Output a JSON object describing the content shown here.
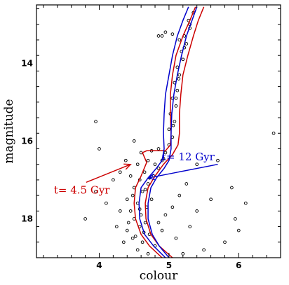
{
  "chart_data": {
    "type": "scatter",
    "title": "",
    "xlabel": "colour",
    "ylabel": "magnitude",
    "xlim": [
      3.1,
      6.6
    ],
    "ylim": [
      19.0,
      12.5
    ],
    "y_inverted": true,
    "xticks": [
      4,
      5,
      6
    ],
    "yticks": [
      14,
      16,
      18
    ],
    "xtick_labels": [
      "4",
      "5",
      "6"
    ],
    "ytick_labels": [
      "14",
      "16",
      "18"
    ],
    "grid": false,
    "legend": "none",
    "colors": {
      "points": "#000000",
      "isochrone_4_5": "#cc0000",
      "isochrone_12": "#0000cc"
    },
    "annotations": [
      {
        "text": "t= 4.5 Gyr",
        "color": "#cc0000",
        "x": 3.35,
        "y": 17.35,
        "arrow_to": [
          4.45,
          16.6
        ]
      },
      {
        "text": "t= 12 Gyr",
        "color": "#0000cc",
        "x": 4.9,
        "y": 16.5,
        "arrow_to": [
          4.7,
          16.95
        ],
        "arrow_from": [
          5.7,
          16.6
        ]
      }
    ],
    "lines": [
      {
        "name": "t= 4.5 Gyr",
        "color": "#cc0000",
        "branch": "left",
        "points": [
          [
            4.9,
            19.0
          ],
          [
            4.72,
            18.7
          ],
          [
            4.6,
            18.4
          ],
          [
            4.52,
            18.0
          ],
          [
            4.5,
            17.6
          ],
          [
            4.52,
            17.2
          ],
          [
            4.6,
            16.9
          ],
          [
            4.68,
            16.55
          ],
          [
            4.62,
            16.3
          ],
          [
            4.68,
            16.25
          ],
          [
            4.95,
            16.25
          ],
          [
            5.02,
            16.1
          ],
          [
            5.03,
            15.8
          ],
          [
            5.02,
            15.3
          ],
          [
            5.02,
            14.8
          ],
          [
            5.05,
            14.3
          ],
          [
            5.1,
            13.8
          ],
          [
            5.2,
            13.3
          ],
          [
            5.3,
            12.9
          ],
          [
            5.38,
            12.55
          ]
        ]
      },
      {
        "name": "t= 4.5 Gyr",
        "color": "#cc0000",
        "branch": "right",
        "points": [
          [
            5.05,
            19.0
          ],
          [
            4.86,
            18.7
          ],
          [
            4.74,
            18.4
          ],
          [
            4.67,
            18.0
          ],
          [
            4.66,
            17.6
          ],
          [
            4.7,
            17.2
          ],
          [
            4.8,
            16.9
          ],
          [
            4.92,
            16.6
          ],
          [
            5.05,
            16.35
          ],
          [
            5.13,
            16.1
          ],
          [
            5.15,
            15.8
          ],
          [
            5.15,
            15.3
          ],
          [
            5.17,
            14.8
          ],
          [
            5.2,
            14.3
          ],
          [
            5.27,
            13.8
          ],
          [
            5.35,
            13.3
          ],
          [
            5.42,
            12.9
          ],
          [
            5.5,
            12.55
          ]
        ]
      },
      {
        "name": "t= 12 Gyr",
        "color": "#0000cc",
        "branch": "left",
        "points": [
          [
            4.95,
            19.0
          ],
          [
            4.78,
            18.7
          ],
          [
            4.65,
            18.4
          ],
          [
            4.58,
            18.0
          ],
          [
            4.57,
            17.6
          ],
          [
            4.6,
            17.2
          ],
          [
            4.7,
            16.95
          ],
          [
            4.82,
            16.7
          ],
          [
            4.9,
            16.5
          ],
          [
            4.93,
            16.2
          ],
          [
            4.92,
            15.8
          ],
          [
            4.93,
            15.3
          ],
          [
            4.95,
            14.8
          ],
          [
            5.0,
            14.3
          ],
          [
            5.05,
            13.8
          ],
          [
            5.12,
            13.3
          ],
          [
            5.2,
            12.9
          ],
          [
            5.28,
            12.55
          ]
        ]
      },
      {
        "name": "t= 12 Gyr",
        "color": "#0000cc",
        "branch": "right",
        "points": [
          [
            5.0,
            19.0
          ],
          [
            4.86,
            18.7
          ],
          [
            4.76,
            18.4
          ],
          [
            4.7,
            18.0
          ],
          [
            4.7,
            17.6
          ],
          [
            4.74,
            17.2
          ],
          [
            4.82,
            16.95
          ],
          [
            4.93,
            16.7
          ],
          [
            5.0,
            16.5
          ],
          [
            5.03,
            16.2
          ],
          [
            5.03,
            15.8
          ],
          [
            5.04,
            15.3
          ],
          [
            5.07,
            14.8
          ],
          [
            5.12,
            14.3
          ],
          [
            5.18,
            13.8
          ],
          [
            5.25,
            13.3
          ],
          [
            5.33,
            12.9
          ],
          [
            5.4,
            12.55
          ]
        ]
      }
    ],
    "scatter": {
      "name": "stars",
      "points": [
        [
          4.55,
          18.8
        ],
        [
          4.62,
          18.6
        ],
        [
          4.48,
          18.5
        ],
        [
          4.7,
          18.9
        ],
        [
          4.8,
          18.7
        ],
        [
          4.4,
          18.3
        ],
        [
          4.58,
          18.2
        ],
        [
          4.66,
          18.1
        ],
        [
          4.72,
          18.4
        ],
        [
          4.5,
          18.0
        ],
        [
          4.6,
          17.9
        ],
        [
          4.45,
          17.8
        ],
        [
          4.68,
          17.7
        ],
        [
          4.55,
          17.6
        ],
        [
          4.75,
          17.5
        ],
        [
          4.4,
          17.5
        ],
        [
          4.62,
          17.3
        ],
        [
          4.5,
          17.2
        ],
        [
          4.7,
          17.1
        ],
        [
          4.58,
          17.0
        ],
        [
          4.78,
          16.9
        ],
        [
          4.65,
          16.8
        ],
        [
          4.85,
          16.7
        ],
        [
          4.45,
          16.9
        ],
        [
          4.55,
          16.6
        ],
        [
          4.7,
          16.5
        ],
        [
          4.9,
          16.5
        ],
        [
          4.95,
          16.3
        ],
        [
          4.6,
          16.3
        ],
        [
          4.75,
          16.25
        ],
        [
          4.85,
          16.2
        ],
        [
          5.0,
          16.1
        ],
        [
          5.05,
          15.9
        ],
        [
          5.0,
          15.7
        ],
        [
          5.08,
          15.5
        ],
        [
          5.02,
          15.3
        ],
        [
          5.1,
          15.1
        ],
        [
          5.05,
          14.9
        ],
        [
          5.12,
          14.7
        ],
        [
          5.08,
          14.5
        ],
        [
          5.15,
          14.3
        ],
        [
          5.12,
          14.1
        ],
        [
          5.2,
          13.9
        ],
        [
          5.18,
          13.7
        ],
        [
          5.25,
          13.5
        ],
        [
          5.22,
          13.3
        ],
        [
          5.3,
          13.1
        ],
        [
          5.28,
          12.9
        ],
        [
          5.35,
          12.7
        ],
        [
          5.15,
          13.4
        ],
        [
          4.9,
          13.3
        ],
        [
          4.95,
          13.2
        ],
        [
          5.05,
          13.25
        ],
        [
          4.85,
          13.3
        ],
        [
          4.3,
          17.8
        ],
        [
          4.25,
          18.2
        ],
        [
          4.35,
          18.6
        ],
        [
          4.9,
          18.3
        ],
        [
          5.1,
          18.5
        ],
        [
          5.3,
          18.2
        ],
        [
          5.4,
          17.8
        ],
        [
          5.6,
          17.5
        ],
        [
          5.9,
          17.2
        ],
        [
          6.1,
          17.6
        ],
        [
          6.0,
          18.3
        ],
        [
          5.5,
          18.8
        ],
        [
          5.2,
          18.9
        ],
        [
          4.2,
          17.0
        ],
        [
          4.3,
          16.8
        ],
        [
          4.1,
          17.6
        ],
        [
          3.8,
          18.0
        ],
        [
          3.95,
          17.3
        ],
        [
          4.0,
          16.2
        ],
        [
          4.5,
          16.0
        ],
        [
          5.4,
          16.6
        ],
        [
          5.7,
          16.5
        ],
        [
          6.5,
          15.8
        ],
        [
          3.95,
          15.5
        ],
        [
          5.8,
          18.6
        ],
        [
          5.95,
          18.0
        ],
        [
          4.52,
          18.45
        ],
        [
          4.64,
          18.35
        ],
        [
          4.58,
          17.75
        ],
        [
          4.48,
          17.4
        ],
        [
          4.66,
          17.25
        ],
        [
          4.72,
          16.95
        ],
        [
          4.8,
          16.6
        ],
        [
          4.92,
          16.45
        ],
        [
          5.06,
          15.6
        ],
        [
          5.1,
          14.9
        ],
        [
          5.14,
          14.4
        ],
        [
          5.22,
          13.6
        ],
        [
          5.3,
          13.0
        ],
        [
          4.42,
          18.1
        ],
        [
          4.85,
          18.1
        ],
        [
          4.95,
          17.9
        ],
        [
          5.05,
          17.7
        ],
        [
          5.15,
          17.4
        ],
        [
          5.25,
          17.1
        ],
        [
          4.38,
          16.5
        ]
      ]
    }
  }
}
